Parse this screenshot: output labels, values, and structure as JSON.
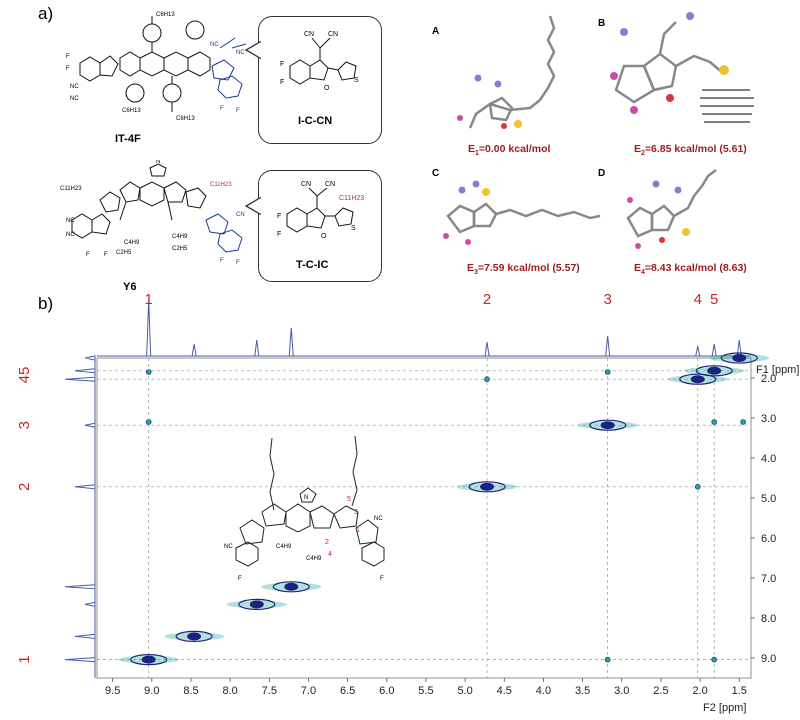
{
  "panel_a": {
    "label": "a)",
    "molecule_1": "IT-4F",
    "fragment_1": "I-C-CN",
    "molecule_2": "Y6",
    "fragment_2": "T-C-IC",
    "conformers": [
      {
        "letter": "A",
        "energy_prefix": "E",
        "energy_sub": "1",
        "energy_text": "=0.00 kcal/mol"
      },
      {
        "letter": "B",
        "energy_prefix": "E",
        "energy_sub": "2",
        "energy_text": "=6.85 kcal/mol (5.61)"
      },
      {
        "letter": "C",
        "energy_prefix": "E",
        "energy_sub": "3",
        "energy_text": "=7.59 kcal/mol (5.57)"
      },
      {
        "letter": "D",
        "energy_prefix": "E",
        "energy_sub": "4",
        "energy_text": "=8.43 kcal/mol (8.63)"
      }
    ]
  },
  "panel_b": {
    "label": "b)",
    "f1_label": "F1 [ppm]",
    "f2_label": "F2 [ppm]",
    "x_ticks": [
      "9.5",
      "9.0",
      "8.5",
      "8.0",
      "7.5",
      "7.0",
      "6.5",
      "6.0",
      "5.5",
      "5.0",
      "4.5",
      "4.0",
      "3.5",
      "3.0",
      "2.5",
      "2.0",
      "1.5"
    ],
    "y_ticks": [
      "2.0",
      "3.0",
      "4.0",
      "5.0",
      "6.0",
      "7.0",
      "8.0",
      "9.0"
    ],
    "peak_labels_top": [
      "1",
      "2",
      "3",
      "4",
      "5"
    ],
    "peak_labels_left": [
      "5",
      "4",
      "3",
      "2",
      "1"
    ]
  },
  "chart_data": {
    "type": "scatter",
    "title": "",
    "xlabel": "F2 [ppm]",
    "ylabel": "F1 [ppm]",
    "xlim": [
      9.7,
      1.35
    ],
    "ylim": [
      1.5,
      9.5
    ],
    "diagonal_peaks": [
      {
        "x": 9.04,
        "y": 9.04
      },
      {
        "x": 8.46,
        "y": 8.46
      },
      {
        "x": 7.66,
        "y": 7.66
      },
      {
        "x": 7.22,
        "y": 7.22
      },
      {
        "x": 4.72,
        "y": 4.72
      },
      {
        "x": 3.18,
        "y": 3.18
      },
      {
        "x": 2.03,
        "y": 2.03
      },
      {
        "x": 1.82,
        "y": 1.82
      },
      {
        "x": 1.5,
        "y": 1.5
      }
    ],
    "cross_peaks": [
      {
        "x": 9.04,
        "y": 3.1
      },
      {
        "x": 9.04,
        "y": 1.85
      },
      {
        "x": 3.18,
        "y": 9.04
      },
      {
        "x": 3.18,
        "y": 1.85
      },
      {
        "x": 4.72,
        "y": 2.03
      },
      {
        "x": 2.03,
        "y": 4.72
      },
      {
        "x": 1.82,
        "y": 3.1
      },
      {
        "x": 1.45,
        "y": 3.1
      },
      {
        "x": 1.82,
        "y": 9.04
      }
    ],
    "peak_assignments": [
      {
        "label": "1",
        "ppm": 9.04
      },
      {
        "label": "2",
        "ppm": 4.72
      },
      {
        "label": "3",
        "ppm": 3.18
      },
      {
        "label": "4",
        "ppm": 2.03
      },
      {
        "label": "5",
        "ppm": 1.82
      }
    ]
  },
  "colors": {
    "red_label": "#c0282d",
    "contour_dark": "#1a237e",
    "contour_cyan": "#26a69a",
    "energy": "#9b1c1c",
    "blue_structure": "#1f3a93"
  }
}
